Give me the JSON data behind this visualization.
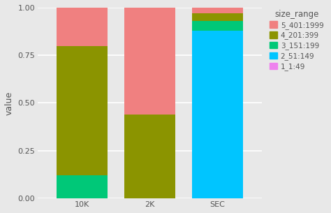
{
  "categories": [
    "10K",
    "2K",
    "SEC"
  ],
  "series": {
    "1_1:49": [
      0.0,
      0.0,
      0.0
    ],
    "2_51:149": [
      0.0,
      0.0,
      0.88
    ],
    "3_151:199": [
      0.12,
      0.0,
      0.05
    ],
    "4_201:399": [
      0.68,
      0.44,
      0.04
    ],
    "5_401:1999": [
      0.2,
      0.56,
      0.03
    ]
  },
  "colors": {
    "1_1:49": "#ee82ee",
    "2_51:149": "#00c5ff",
    "3_151:199": "#00c878",
    "4_201:399": "#8b9400",
    "5_401:1999": "#f08080"
  },
  "legend_labels": {
    "5_401:1999": "5_401:1999",
    "4_201:399": "4_201:399",
    "3_151:199": "3_151:199",
    "2_51:149": "2_51:149",
    "1_1:49": "1_1:49"
  },
  "ylabel": "value",
  "ylim": [
    0.0,
    1.0
  ],
  "yticks": [
    0.0,
    0.25,
    0.5,
    0.75,
    1.0
  ],
  "ytick_labels": [
    "0.00",
    "0.25",
    "0.50",
    "0.75",
    "1.00"
  ],
  "bg_color": "#e8e8e8",
  "panel_bg": "#e8e8e8",
  "grid_color": "#ffffff",
  "legend_title": "size_range",
  "bar_width": 0.75,
  "figsize": [
    4.74,
    3.05
  ],
  "dpi": 100
}
